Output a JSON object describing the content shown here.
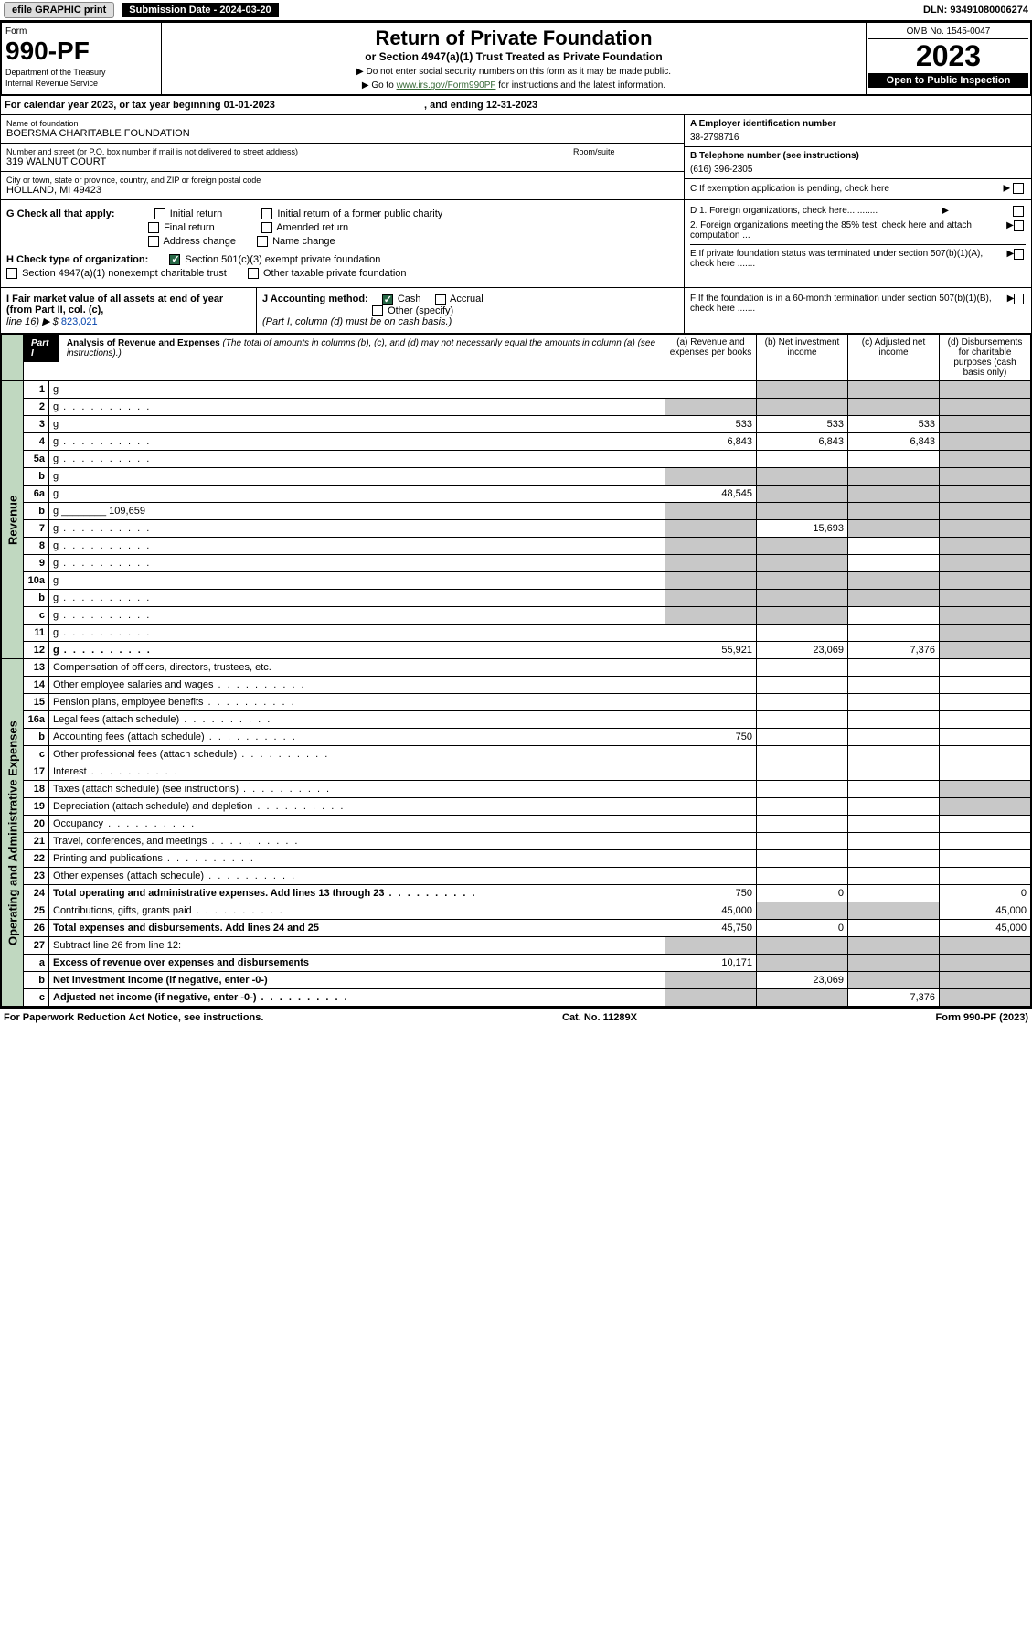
{
  "top": {
    "efile": "efile GRAPHIC print",
    "sub_label": "Submission Date - 2024-03-20",
    "dln": "DLN: 93491080006274"
  },
  "header": {
    "form": "Form",
    "form_no": "990-PF",
    "dept": "Department of the Treasury",
    "irs": "Internal Revenue Service",
    "title": "Return of Private Foundation",
    "subtitle": "or Section 4947(a)(1) Trust Treated as Private Foundation",
    "instr1": "▶ Do not enter social security numbers on this form as it may be made public.",
    "instr2": "▶ Go to ",
    "instr2_link": "www.irs.gov/Form990PF",
    "instr2_rest": " for instructions and the latest information.",
    "omb": "OMB No. 1545-0047",
    "year": "2023",
    "open": "Open to Public Inspection"
  },
  "cal": {
    "text": "For calendar year 2023, or tax year beginning 01-01-2023",
    "ending": ", and ending 12-31-2023"
  },
  "id": {
    "name_label": "Name of foundation",
    "name": "BOERSMA CHARITABLE FOUNDATION",
    "addr_label": "Number and street (or P.O. box number if mail is not delivered to street address)",
    "addr": "319 WALNUT COURT",
    "room_label": "Room/suite",
    "city_label": "City or town, state or province, country, and ZIP or foreign postal code",
    "city": "HOLLAND, MI  49423",
    "ein_label": "A Employer identification number",
    "ein": "38-2798716",
    "phone_label": "B Telephone number (see instructions)",
    "phone": "(616) 396-2305",
    "c_label": "C If exemption application is pending, check here"
  },
  "checks": {
    "g_label": "G Check all that apply:",
    "g_opts": [
      "Initial return",
      "Initial return of a former public charity",
      "Final return",
      "Amended return",
      "Address change",
      "Name change"
    ],
    "h_label": "H Check type of organization:",
    "h_501": "Section 501(c)(3) exempt private foundation",
    "h_4947": "Section 4947(a)(1) nonexempt charitable trust",
    "h_other": "Other taxable private foundation",
    "d1": "D 1. Foreign organizations, check here............",
    "d2": "2. Foreign organizations meeting the 85% test, check here and attach computation ...",
    "e": "E  If private foundation status was terminated under section 507(b)(1)(A), check here .......",
    "f": "F  If the foundation is in a 60-month termination under section 507(b)(1)(B), check here ......."
  },
  "fmv": {
    "i_label": "I Fair market value of all assets at end of year (from Part II, col. (c),",
    "i_line": "line 16) ▶ $",
    "i_val": "823,021",
    "j_label": "J Accounting method:",
    "j_cash": "Cash",
    "j_accr": "Accrual",
    "j_other": "Other (specify)",
    "j_note": "(Part I, column (d) must be on cash basis.)"
  },
  "part1": {
    "tag": "Part I",
    "title": "Analysis of Revenue and Expenses",
    "note": " (The total of amounts in columns (b), (c), and (d) may not necessarily equal the amounts in column (a) (see instructions).)",
    "col_a": "(a) Revenue and expenses per books",
    "col_b": "(b) Net investment income",
    "col_c": "(c) Adjusted net income",
    "col_d": "(d) Disbursements for charitable purposes (cash basis only)"
  },
  "sides": {
    "rev": "Revenue",
    "exp": "Operating and Administrative Expenses"
  },
  "rows": [
    {
      "n": "1",
      "d": "g",
      "a": "",
      "b": "g",
      "c": "g"
    },
    {
      "n": "2",
      "d": "g",
      "dots": true,
      "a": "g",
      "b": "g",
      "c": "g"
    },
    {
      "n": "3",
      "d": "g",
      "a": "533",
      "b": "533",
      "c": "533"
    },
    {
      "n": "4",
      "d": "g",
      "dots": true,
      "a": "6,843",
      "b": "6,843",
      "c": "6,843"
    },
    {
      "n": "5a",
      "d": "g",
      "dots": true,
      "a": "",
      "b": "",
      "c": ""
    },
    {
      "n": "b",
      "d": "g",
      "inset": true,
      "a": "g",
      "b": "g",
      "c": "g"
    },
    {
      "n": "6a",
      "d": "g",
      "a": "48,545",
      "b": "g",
      "c": "g"
    },
    {
      "n": "b",
      "d": "g",
      "inset": true,
      "val_inline": "109,659",
      "a": "g",
      "b": "g",
      "c": "g"
    },
    {
      "n": "7",
      "d": "g",
      "dots": true,
      "a": "g",
      "b": "15,693",
      "c": "g"
    },
    {
      "n": "8",
      "d": "g",
      "dots": true,
      "a": "g",
      "b": "g",
      "c": ""
    },
    {
      "n": "9",
      "d": "g",
      "dots": true,
      "a": "g",
      "b": "g",
      "c": ""
    },
    {
      "n": "10a",
      "d": "g",
      "inset": true,
      "a": "g",
      "b": "g",
      "c": "g"
    },
    {
      "n": "b",
      "d": "g",
      "dots": true,
      "inset": true,
      "a": "g",
      "b": "g",
      "c": "g"
    },
    {
      "n": "c",
      "d": "g",
      "dots": true,
      "a": "g",
      "b": "g",
      "c": ""
    },
    {
      "n": "11",
      "d": "g",
      "dots": true,
      "a": "",
      "b": "",
      "c": ""
    },
    {
      "n": "12",
      "d": "g",
      "dots": true,
      "bold": true,
      "a": "55,921",
      "b": "23,069",
      "c": "7,376"
    }
  ],
  "exp_rows": [
    {
      "n": "13",
      "d": "Compensation of officers, directors, trustees, etc.",
      "a": "",
      "b": "",
      "c": "",
      "dd": ""
    },
    {
      "n": "14",
      "d": "Other employee salaries and wages",
      "dots": true,
      "a": "",
      "b": "",
      "c": "",
      "dd": ""
    },
    {
      "n": "15",
      "d": "Pension plans, employee benefits",
      "dots": true,
      "a": "",
      "b": "",
      "c": "",
      "dd": ""
    },
    {
      "n": "16a",
      "d": "Legal fees (attach schedule)",
      "dots": true,
      "a": "",
      "b": "",
      "c": "",
      "dd": ""
    },
    {
      "n": "b",
      "d": "Accounting fees (attach schedule)",
      "dots": true,
      "a": "750",
      "b": "",
      "c": "",
      "dd": ""
    },
    {
      "n": "c",
      "d": "Other professional fees (attach schedule)",
      "dots": true,
      "a": "",
      "b": "",
      "c": "",
      "dd": ""
    },
    {
      "n": "17",
      "d": "Interest",
      "dots": true,
      "a": "",
      "b": "",
      "c": "",
      "dd": ""
    },
    {
      "n": "18",
      "d": "Taxes (attach schedule) (see instructions)",
      "dots": true,
      "a": "",
      "b": "",
      "c": "",
      "dd": "g"
    },
    {
      "n": "19",
      "d": "Depreciation (attach schedule) and depletion",
      "dots": true,
      "a": "",
      "b": "",
      "c": "",
      "dd": "g"
    },
    {
      "n": "20",
      "d": "Occupancy",
      "dots": true,
      "a": "",
      "b": "",
      "c": "",
      "dd": ""
    },
    {
      "n": "21",
      "d": "Travel, conferences, and meetings",
      "dots": true,
      "a": "",
      "b": "",
      "c": "",
      "dd": ""
    },
    {
      "n": "22",
      "d": "Printing and publications",
      "dots": true,
      "a": "",
      "b": "",
      "c": "",
      "dd": ""
    },
    {
      "n": "23",
      "d": "Other expenses (attach schedule)",
      "dots": true,
      "a": "",
      "b": "",
      "c": "",
      "dd": ""
    },
    {
      "n": "24",
      "d": "Total operating and administrative expenses. Add lines 13 through 23",
      "dots": true,
      "bold": true,
      "a": "750",
      "b": "0",
      "c": "",
      "dd": "0"
    },
    {
      "n": "25",
      "d": "Contributions, gifts, grants paid",
      "dots": true,
      "a": "45,000",
      "b": "g",
      "c": "g",
      "dd": "45,000"
    },
    {
      "n": "26",
      "d": "Total expenses and disbursements. Add lines 24 and 25",
      "bold": true,
      "a": "45,750",
      "b": "0",
      "c": "",
      "dd": "45,000"
    },
    {
      "n": "27",
      "d": "Subtract line 26 from line 12:",
      "a": "g",
      "b": "g",
      "c": "g",
      "dd": "g"
    },
    {
      "n": "a",
      "d": "Excess of revenue over expenses and disbursements",
      "bold": true,
      "a": "10,171",
      "b": "g",
      "c": "g",
      "dd": "g"
    },
    {
      "n": "b",
      "d": "Net investment income (if negative, enter -0-)",
      "bold": true,
      "a": "g",
      "b": "23,069",
      "c": "g",
      "dd": "g"
    },
    {
      "n": "c",
      "d": "Adjusted net income (if negative, enter -0-)",
      "dots": true,
      "bold": true,
      "a": "g",
      "b": "g",
      "c": "7,376",
      "dd": "g"
    }
  ],
  "footer": {
    "left": "For Paperwork Reduction Act Notice, see instructions.",
    "mid": "Cat. No. 11289X",
    "right": "Form 990-PF (2023)"
  }
}
